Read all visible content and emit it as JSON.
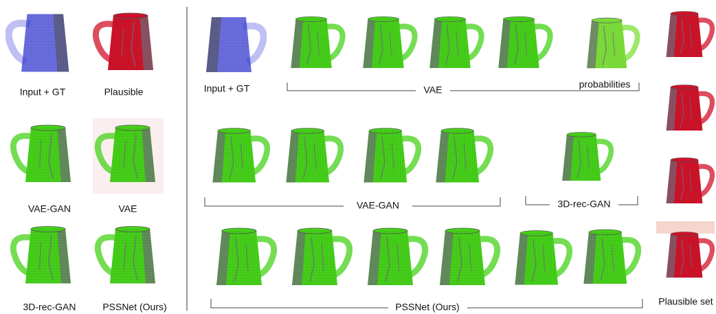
{
  "left_panel": {
    "labels": [
      "Input + GT",
      "Plausible",
      "VAE-GAN",
      "VAE",
      "3D-rec-GAN",
      "PSSNet (Ours)"
    ]
  },
  "right_panel": {
    "row1": {
      "input_label": "Input + GT",
      "group_label": "VAE",
      "end_label": "probabilities"
    },
    "row2": {
      "group_labels": [
        "VAE-GAN",
        "3D-rec-GAN"
      ]
    },
    "row3": {
      "group_label": "PSSNet (Ours)"
    },
    "column_label": "Plausible set"
  }
}
